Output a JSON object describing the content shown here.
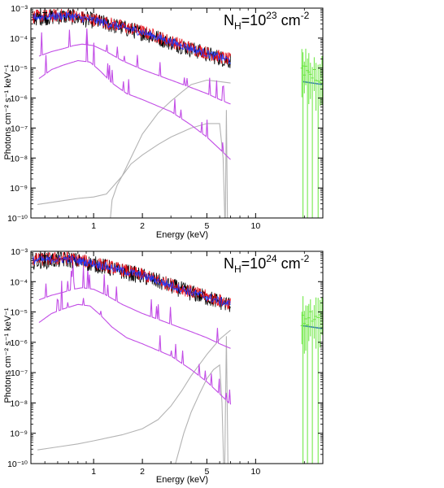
{
  "colors": {
    "data_black": "#000000",
    "data_red": "#e8141e",
    "data_blue": "#1f3cff",
    "data_green": "#66e63a",
    "model_magenta": "#c24de6",
    "model_gray": "#b3b3b3",
    "model_line_blue": "#2850e6"
  },
  "chart_data": [
    {
      "type": "line",
      "panel": "top",
      "annotation": {
        "base": "N",
        "sub": "H",
        "eq": "=10",
        "sup1": "23",
        "unit": " cm",
        "sup2": "-2"
      },
      "xlabel": "Energy (keV)",
      "ylabel": "Photons cm⁻² s⁻¹ keV⁻¹",
      "xscale": "log",
      "yscale": "log",
      "xlim": [
        0.41,
        26
      ],
      "ylim": [
        1e-10,
        0.001
      ],
      "x_ticks": [
        {
          "v": 1,
          "label": "1"
        },
        {
          "v": 2,
          "label": "2"
        },
        {
          "v": 5,
          "label": "5"
        },
        {
          "v": 10,
          "label": "10"
        }
      ],
      "y_ticks": [
        {
          "v": -3,
          "label": "10⁻³"
        },
        {
          "v": -4,
          "label": "10⁻⁴"
        },
        {
          "v": -5,
          "label": "10⁻⁵"
        },
        {
          "v": -6,
          "label": "10⁻⁶"
        },
        {
          "v": -7,
          "label": "10⁻⁷"
        },
        {
          "v": -8,
          "label": "10⁻⁸"
        },
        {
          "v": -9,
          "label": "10⁻⁹"
        },
        {
          "v": -10,
          "label": "10⁻¹⁰"
        }
      ],
      "series": [
        {
          "role": "gray-1",
          "color": "model_gray",
          "points": [
            [
              0.45,
              -9.55
            ],
            [
              0.6,
              -9.45
            ],
            [
              0.8,
              -9.35
            ],
            [
              1.0,
              -9.3
            ],
            [
              1.2,
              -9.2
            ],
            [
              1.5,
              -8.6
            ],
            [
              2.0,
              -7.2
            ],
            [
              2.5,
              -6.5
            ],
            [
              3.0,
              -6.1
            ],
            [
              3.5,
              -5.8
            ],
            [
              4.0,
              -5.55
            ],
            [
              5.0,
              -5.4
            ],
            [
              6.0,
              -5.45
            ],
            [
              7.0,
              -5.5
            ]
          ]
        },
        {
          "role": "gray-2",
          "color": "model_gray",
          "points": [
            [
              1.27,
              -10
            ],
            [
              1.3,
              -9.4
            ],
            [
              1.4,
              -8.9
            ],
            [
              1.5,
              -8.6
            ],
            [
              1.7,
              -8.2
            ],
            [
              2.0,
              -7.9
            ],
            [
              2.5,
              -7.55
            ],
            [
              3.0,
              -7.3
            ],
            [
              4.0,
              -7.0
            ],
            [
              5.0,
              -6.85
            ],
            [
              6.0,
              -6.85
            ],
            [
              6.3,
              -8.0
            ],
            [
              6.45,
              -10
            ]
          ]
        },
        {
          "role": "gray-3",
          "color": "model_gray",
          "points": [
            [
              6.5,
              -10
            ],
            [
              6.6,
              -6.4
            ],
            [
              6.7,
              -10
            ]
          ]
        },
        {
          "role": "magenta-1",
          "color": "model_magenta",
          "points": [
            [
              0.46,
              -4.6
            ],
            [
              0.55,
              -4.45
            ],
            [
              0.65,
              -4.35
            ],
            [
              0.75,
              -4.25
            ],
            [
              0.85,
              -4.2
            ],
            [
              1.0,
              -4.25
            ],
            [
              1.2,
              -4.45
            ],
            [
              1.5,
              -4.75
            ],
            [
              2.0,
              -5.05
            ],
            [
              3.0,
              -5.4
            ],
            [
              4.0,
              -5.65
            ],
            [
              5.0,
              -5.85
            ],
            [
              6.0,
              -6.05
            ],
            [
              7.0,
              -6.2
            ]
          ]
        },
        {
          "role": "magenta-2",
          "color": "model_magenta",
          "points": [
            [
              0.46,
              -5.35
            ],
            [
              0.55,
              -5.05
            ],
            [
              0.65,
              -4.9
            ],
            [
              0.8,
              -4.75
            ],
            [
              0.95,
              -4.8
            ],
            [
              1.1,
              -5.1
            ],
            [
              1.3,
              -5.5
            ],
            [
              1.6,
              -5.85
            ],
            [
              2.0,
              -6.05
            ],
            [
              3.0,
              -6.45
            ],
            [
              4.0,
              -6.9
            ],
            [
              5.0,
              -7.3
            ],
            [
              6.0,
              -7.7
            ],
            [
              7.0,
              -8.05
            ]
          ]
        },
        {
          "role": "model-blue",
          "color": "model_line_blue",
          "points": [
            [
              0.42,
              -3.3
            ],
            [
              0.7,
              -3.25
            ],
            [
              1.0,
              -3.4
            ],
            [
              2.0,
              -3.8
            ],
            [
              4.0,
              -4.35
            ],
            [
              7.0,
              -4.75
            ]
          ]
        },
        {
          "role": "model-blue-right",
          "color": "model_line_blue",
          "points": [
            [
              19.5,
              -5.45
            ],
            [
              26,
              -5.55
            ]
          ]
        }
      ]
    },
    {
      "type": "line",
      "panel": "bottom",
      "annotation": {
        "base": "N",
        "sub": "H",
        "eq": "=10",
        "sup1": "24",
        "unit": " cm",
        "sup2": "-2"
      },
      "xlabel": "Energy (keV)",
      "ylabel": "Photons cm⁻² s⁻¹ keV⁻¹",
      "xscale": "log",
      "yscale": "log",
      "xlim": [
        0.41,
        26
      ],
      "ylim": [
        1e-10,
        0.001
      ],
      "x_ticks": [
        {
          "v": 1,
          "label": "1"
        },
        {
          "v": 2,
          "label": "2"
        },
        {
          "v": 5,
          "label": "5"
        },
        {
          "v": 10,
          "label": "10"
        }
      ],
      "y_ticks": [
        {
          "v": -3,
          "label": "10⁻³"
        },
        {
          "v": -4,
          "label": "10⁻⁴"
        },
        {
          "v": -5,
          "label": "10⁻⁵"
        },
        {
          "v": -6,
          "label": "10⁻⁶"
        },
        {
          "v": -7,
          "label": "10⁻⁷"
        },
        {
          "v": -8,
          "label": "10⁻⁸"
        },
        {
          "v": -9,
          "label": "10⁻⁹"
        },
        {
          "v": -10,
          "label": "10⁻¹⁰"
        }
      ],
      "series": [
        {
          "role": "gray-1",
          "color": "model_gray",
          "points": [
            [
              0.45,
              -9.55
            ],
            [
              0.6,
              -9.45
            ],
            [
              0.8,
              -9.35
            ],
            [
              1.0,
              -9.25
            ],
            [
              1.5,
              -9.05
            ],
            [
              2.0,
              -8.85
            ],
            [
              2.5,
              -8.55
            ],
            [
              3.0,
              -8.1
            ],
            [
              3.5,
              -7.6
            ],
            [
              4.0,
              -7.1
            ],
            [
              5.0,
              -6.4
            ],
            [
              6.0,
              -5.9
            ],
            [
              7.0,
              -5.6
            ]
          ]
        },
        {
          "role": "gray-2",
          "color": "model_gray",
          "points": [
            [
              3.2,
              -10
            ],
            [
              3.6,
              -9.0
            ],
            [
              4.0,
              -8.3
            ],
            [
              4.5,
              -7.7
            ],
            [
              5.0,
              -7.2
            ],
            [
              5.5,
              -6.9
            ],
            [
              6.0,
              -6.75
            ],
            [
              6.2,
              -8.0
            ],
            [
              6.35,
              -10
            ]
          ]
        },
        {
          "role": "gray-3",
          "color": "model_gray",
          "points": [
            [
              6.45,
              -10
            ],
            [
              6.6,
              -5.8
            ],
            [
              6.75,
              -10
            ]
          ]
        },
        {
          "role": "magenta-1",
          "color": "model_magenta",
          "points": [
            [
              0.46,
              -4.6
            ],
            [
              0.55,
              -4.45
            ],
            [
              0.65,
              -4.35
            ],
            [
              0.75,
              -4.25
            ],
            [
              0.85,
              -4.2
            ],
            [
              1.0,
              -4.25
            ],
            [
              1.2,
              -4.45
            ],
            [
              1.5,
              -4.75
            ],
            [
              2.0,
              -5.05
            ],
            [
              3.0,
              -5.4
            ],
            [
              4.0,
              -5.65
            ],
            [
              5.0,
              -5.85
            ],
            [
              6.0,
              -6.05
            ],
            [
              7.0,
              -6.2
            ]
          ]
        },
        {
          "role": "magenta-2",
          "color": "model_magenta",
          "points": [
            [
              0.46,
              -5.35
            ],
            [
              0.55,
              -5.05
            ],
            [
              0.65,
              -4.9
            ],
            [
              0.8,
              -4.75
            ],
            [
              0.95,
              -4.8
            ],
            [
              1.1,
              -5.1
            ],
            [
              1.3,
              -5.5
            ],
            [
              1.6,
              -5.85
            ],
            [
              2.0,
              -6.05
            ],
            [
              3.0,
              -6.45
            ],
            [
              4.0,
              -6.9
            ],
            [
              5.0,
              -7.3
            ],
            [
              6.0,
              -7.7
            ],
            [
              7.0,
              -8.05
            ]
          ]
        },
        {
          "role": "model-blue",
          "color": "model_line_blue",
          "points": [
            [
              0.42,
              -3.3
            ],
            [
              0.7,
              -3.25
            ],
            [
              1.0,
              -3.4
            ],
            [
              2.0,
              -3.8
            ],
            [
              4.0,
              -4.35
            ],
            [
              7.0,
              -4.75
            ]
          ]
        },
        {
          "role": "model-blue-right",
          "color": "model_line_blue",
          "points": [
            [
              19.5,
              -5.45
            ],
            [
              26,
              -5.55
            ]
          ]
        }
      ]
    }
  ]
}
